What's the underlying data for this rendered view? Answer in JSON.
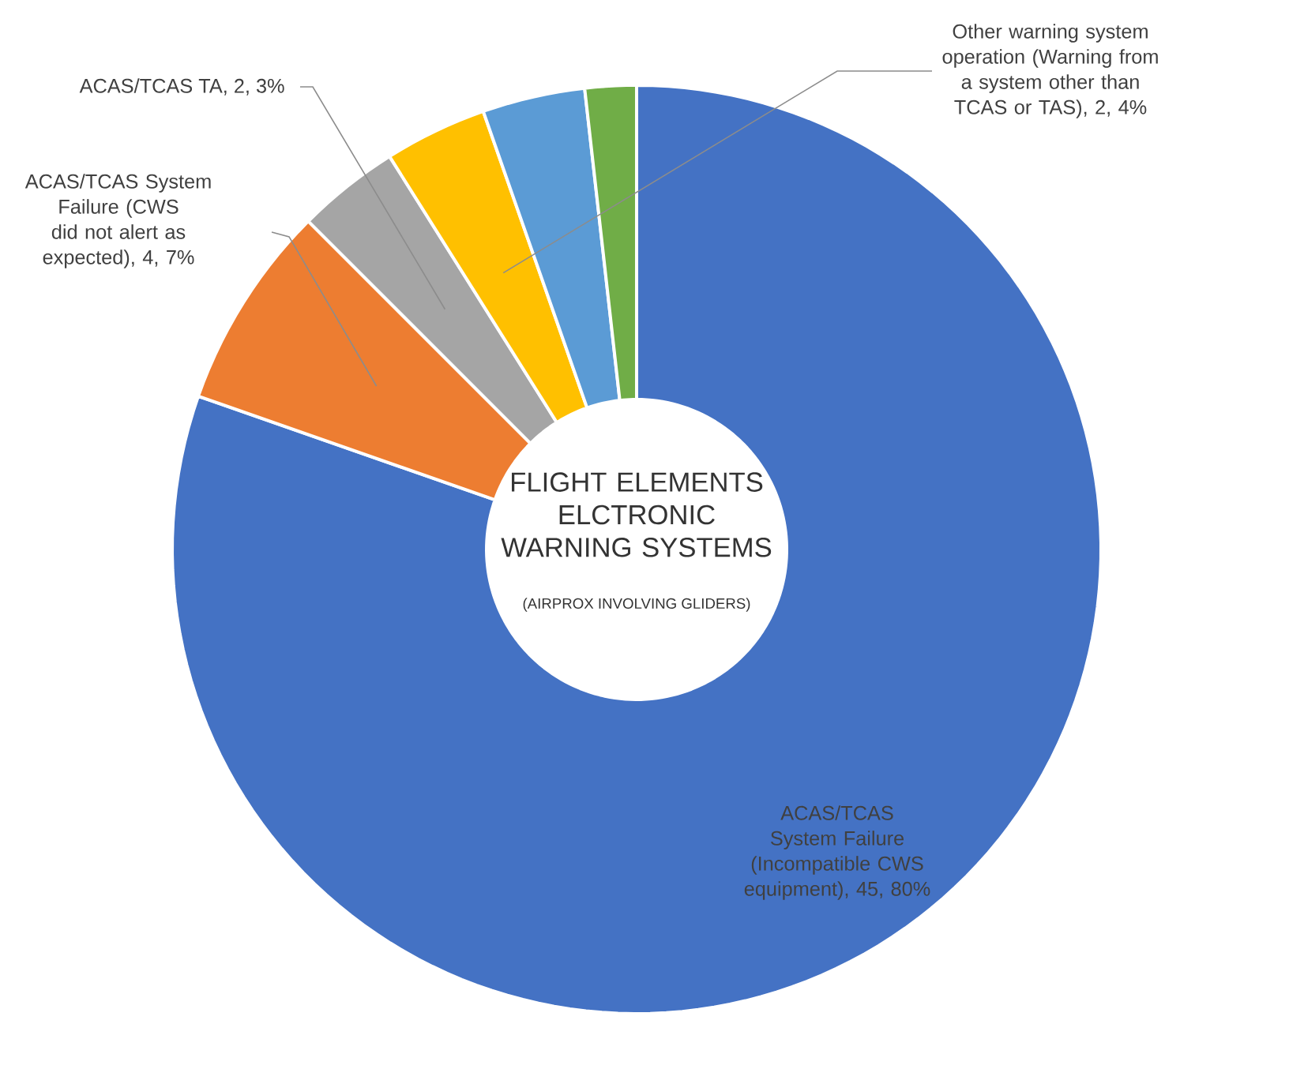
{
  "chart_data": {
    "type": "donut",
    "title": "FLIGHT ELEMENTS ELCTRONIC WARNING SYSTEMS",
    "subtitle": "(AIRPROX INVOLVING GLIDERS)",
    "categories": [
      "ACAS/TCAS System Failure (Incompatible CWS equipment), 45, 80%",
      "ACAS/TCAS System Failure (CWS did not alert as expected), 4, 7%",
      "ACAS/TCAS TA, 2, 3%",
      "Other warning system operation (Warning from a system other than TCAS or TAS), 2, 4%",
      null,
      null
    ],
    "values": [
      45,
      4,
      2,
      2,
      2,
      1
    ],
    "colors": [
      "#4472c4",
      "#ed7d31",
      "#a5a5a5",
      "#ffc000",
      "#5b9bd5",
      "#70ad47"
    ]
  }
}
